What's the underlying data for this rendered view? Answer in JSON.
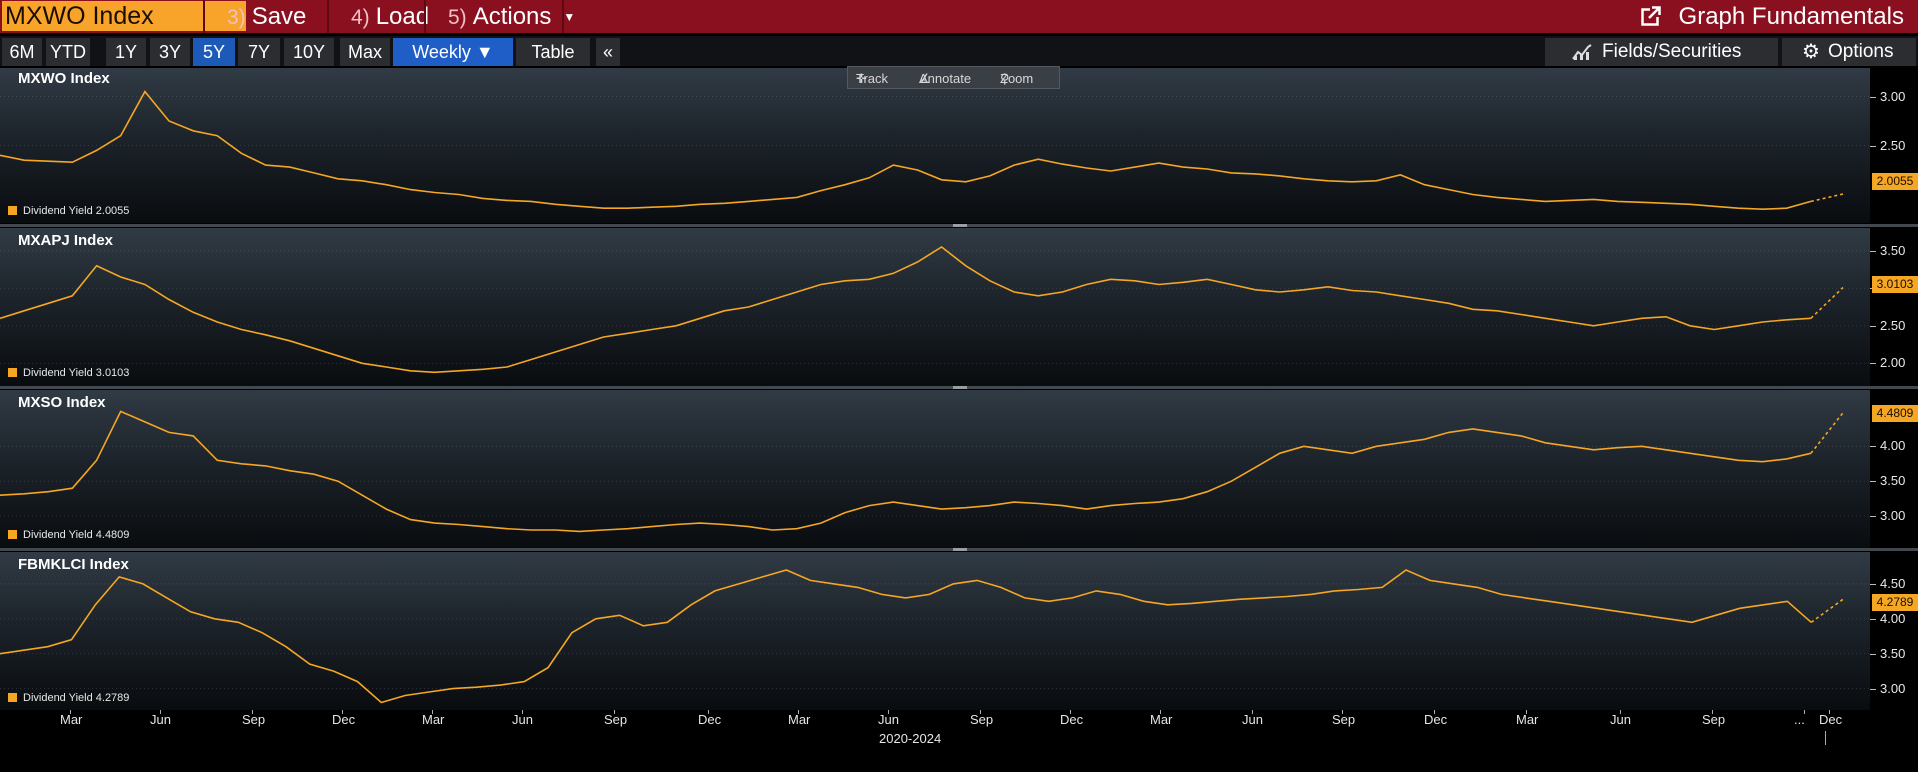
{
  "header": {
    "ticker": "MXWO Index",
    "save_num": "3)",
    "save_label": "Save As",
    "load_num": "4)",
    "load_label": "Load",
    "actions_num": "5)",
    "actions_label": "Actions",
    "graph_label": "Graph Fundamentals"
  },
  "ranges": [
    "6M",
    "YTD",
    "1Y",
    "3Y",
    "5Y",
    "7Y",
    "10Y",
    "Max"
  ],
  "active_range": "5Y",
  "frequency": "Weekly ▼",
  "table_label": "Table",
  "collapse_label": "«",
  "fields_label": "Fields/Securities",
  "options_label": "Options",
  "tools": {
    "track": "Track",
    "annotate": "Annotate",
    "zoom": "Zoom"
  },
  "colors": {
    "line": "#f5a623",
    "header": "#8a1020",
    "ticker_bg": "#f8a32a",
    "active_tab": "#1d5ab8"
  },
  "x_axis": {
    "labels": [
      "Mar",
      "Jun",
      "Sep",
      "Dec",
      "Mar",
      "Jun",
      "Sep",
      "Dec",
      "Mar",
      "Jun",
      "Sep",
      "Dec",
      "Mar",
      "Jun",
      "Sep",
      "Dec",
      "Mar",
      "Jun",
      "Sep",
      "...",
      "Dec"
    ],
    "range_label": "2020-2024"
  },
  "chart_data": [
    {
      "type": "line",
      "title": "MXWO Index",
      "legend": "Dividend Yield 2.0055",
      "last_value": "2.0055",
      "ylim": [
        1.75,
        3.25
      ],
      "yticks": [
        "3.00",
        "2.50"
      ],
      "series": [
        {
          "name": "Dividend Yield",
          "values": [
            2.4,
            2.35,
            2.34,
            2.33,
            2.45,
            2.6,
            3.05,
            2.75,
            2.65,
            2.6,
            2.42,
            2.3,
            2.28,
            2.22,
            2.16,
            2.14,
            2.1,
            2.05,
            2.02,
            2.0,
            1.96,
            1.94,
            1.93,
            1.9,
            1.88,
            1.86,
            1.86,
            1.87,
            1.88,
            1.9,
            1.91,
            1.93,
            1.95,
            1.97,
            2.04,
            2.1,
            2.17,
            2.3,
            2.25,
            2.15,
            2.13,
            2.19,
            2.3,
            2.36,
            2.31,
            2.27,
            2.24,
            2.28,
            2.32,
            2.28,
            2.26,
            2.22,
            2.21,
            2.19,
            2.16,
            2.14,
            2.13,
            2.14,
            2.2,
            2.1,
            2.05,
            2.0,
            1.97,
            1.95,
            1.93,
            1.94,
            1.95,
            1.93,
            1.92,
            1.91,
            1.9,
            1.88,
            1.86,
            1.85,
            1.86,
            1.93,
            2.0055
          ]
        }
      ]
    },
    {
      "type": "line",
      "title": "MXAPJ Index",
      "legend": "Dividend Yield 3.0103",
      "last_value": "3.0103",
      "ylim": [
        1.75,
        3.75
      ],
      "yticks": [
        "3.50",
        "3.00",
        "2.50",
        "2.00"
      ],
      "series": [
        {
          "name": "Dividend Yield",
          "values": [
            2.6,
            2.7,
            2.8,
            2.9,
            3.3,
            3.15,
            3.05,
            2.85,
            2.68,
            2.55,
            2.45,
            2.38,
            2.3,
            2.2,
            2.1,
            2.0,
            1.95,
            1.9,
            1.88,
            1.9,
            1.92,
            1.95,
            2.05,
            2.15,
            2.25,
            2.35,
            2.4,
            2.45,
            2.5,
            2.6,
            2.7,
            2.75,
            2.85,
            2.95,
            3.05,
            3.1,
            3.12,
            3.2,
            3.35,
            3.55,
            3.3,
            3.1,
            2.95,
            2.9,
            2.95,
            3.05,
            3.12,
            3.1,
            3.05,
            3.08,
            3.12,
            3.05,
            2.98,
            2.95,
            2.98,
            3.02,
            2.97,
            2.95,
            2.9,
            2.85,
            2.8,
            2.72,
            2.7,
            2.65,
            2.6,
            2.55,
            2.5,
            2.55,
            2.6,
            2.62,
            2.5,
            2.45,
            2.5,
            2.55,
            2.58,
            2.6,
            3.0103
          ]
        }
      ]
    },
    {
      "type": "line",
      "title": "MXSO Index",
      "legend": "Dividend Yield 4.4809",
      "last_value": "4.4809",
      "ylim": [
        2.6,
        4.75
      ],
      "yticks": [
        "4.00",
        "3.50",
        "3.00"
      ],
      "series": [
        {
          "name": "Dividend Yield",
          "values": [
            3.3,
            3.32,
            3.35,
            3.4,
            3.8,
            4.5,
            4.35,
            4.2,
            4.15,
            3.8,
            3.75,
            3.72,
            3.65,
            3.6,
            3.5,
            3.3,
            3.1,
            2.95,
            2.9,
            2.88,
            2.85,
            2.82,
            2.8,
            2.8,
            2.78,
            2.8,
            2.82,
            2.85,
            2.88,
            2.9,
            2.88,
            2.85,
            2.8,
            2.82,
            2.9,
            3.05,
            3.15,
            3.2,
            3.15,
            3.1,
            3.12,
            3.15,
            3.2,
            3.18,
            3.15,
            3.1,
            3.15,
            3.18,
            3.2,
            3.25,
            3.35,
            3.5,
            3.7,
            3.9,
            4.0,
            3.95,
            3.9,
            4.0,
            4.05,
            4.1,
            4.2,
            4.25,
            4.2,
            4.15,
            4.05,
            4.0,
            3.95,
            3.98,
            4.0,
            3.95,
            3.9,
            3.85,
            3.8,
            3.78,
            3.82,
            3.9,
            4.4809
          ]
        }
      ]
    },
    {
      "type": "line",
      "title": "FBMKLCI Index",
      "legend": "Dividend Yield 4.2789",
      "last_value": "4.2789",
      "ylim": [
        2.75,
        4.9
      ],
      "yticks": [
        "4.50",
        "4.00",
        "3.50",
        "3.00"
      ],
      "series": [
        {
          "name": "Dividend Yield",
          "values": [
            3.5,
            3.55,
            3.6,
            3.7,
            4.2,
            4.6,
            4.5,
            4.3,
            4.1,
            4.0,
            3.95,
            3.8,
            3.6,
            3.35,
            3.25,
            3.1,
            2.8,
            2.9,
            2.95,
            3.0,
            3.02,
            3.05,
            3.1,
            3.3,
            3.8,
            4.0,
            4.05,
            3.9,
            3.95,
            4.2,
            4.4,
            4.5,
            4.6,
            4.7,
            4.55,
            4.5,
            4.45,
            4.35,
            4.3,
            4.35,
            4.5,
            4.55,
            4.45,
            4.3,
            4.25,
            4.3,
            4.4,
            4.35,
            4.25,
            4.2,
            4.22,
            4.25,
            4.28,
            4.3,
            4.32,
            4.35,
            4.4,
            4.42,
            4.45,
            4.7,
            4.55,
            4.5,
            4.45,
            4.35,
            4.3,
            4.25,
            4.2,
            4.15,
            4.1,
            4.05,
            4.0,
            3.95,
            4.05,
            4.15,
            4.2,
            4.25,
            3.95,
            4.2789
          ]
        }
      ]
    }
  ]
}
